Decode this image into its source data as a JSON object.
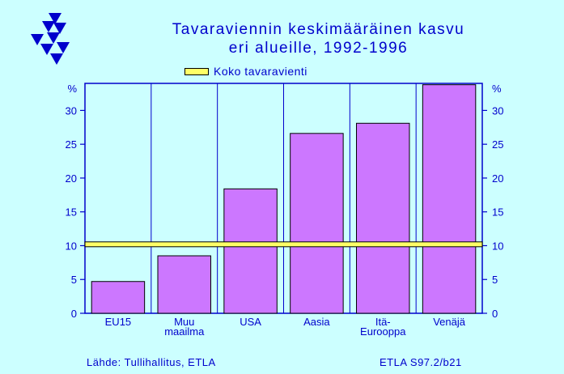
{
  "title_line1": "Tavaraviennin keskimääräinen kasvu",
  "title_line2": "eri alueille, 1992-1996",
  "legend_label": "Koko tavaravienti",
  "source": "Lähde: Tullihallitus, ETLA",
  "code": "ETLA S97.2/b21",
  "colors": {
    "background": "#ccffff",
    "plot_background": "#ccffff",
    "bar": "#cc77ff",
    "text": "#0000cc",
    "reference_line": "#ffff66"
  },
  "chart_data": {
    "type": "bar",
    "title": "Tavaraviennin keskimääräinen kasvu eri alueille, 1992-1996",
    "ylabel": "%",
    "ylim": [
      0,
      34
    ],
    "yticks": [
      "0",
      "5",
      "10",
      "15",
      "20",
      "25",
      "30",
      "%"
    ],
    "categories": [
      [
        "EU15"
      ],
      [
        "Muu",
        "maailma"
      ],
      [
        "USA"
      ],
      [
        "Aasia"
      ],
      [
        "Itä-",
        "Eurooppa"
      ],
      [
        "Venäjä"
      ]
    ],
    "values": [
      4.7,
      8.5,
      18.4,
      26.6,
      28.1,
      33.8
    ],
    "reference_line": {
      "label": "Koko tavaravienti",
      "value": 10.2
    },
    "grid": "vertical",
    "legend_position": "top"
  }
}
